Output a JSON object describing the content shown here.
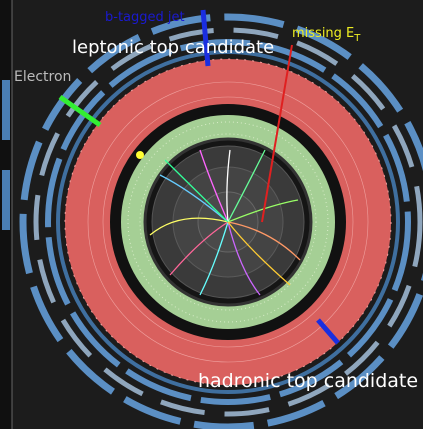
{
  "labels": {
    "b_tagged_jet": "b-tagged jet",
    "leptonic_top": "leptonic top candidate",
    "missing_et": {
      "text": "missing E",
      "subscript": "T"
    },
    "electron": "Electron",
    "hadronic_top": "hadronic top candidate"
  }
}
